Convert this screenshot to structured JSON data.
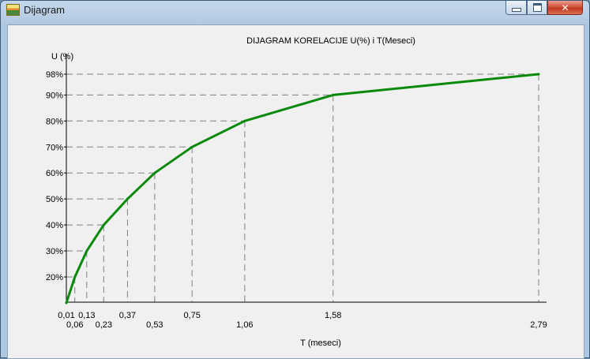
{
  "window": {
    "title": "Dijagram",
    "controls": {
      "minimize": "minimize",
      "maximize": "maximize",
      "close": "close"
    }
  },
  "chart_data": {
    "type": "line",
    "title": "DIJAGRAM KORELACIJE U(%) i T(Meseci)",
    "xlabel": "T (meseci)",
    "ylabel": "U (%)",
    "line_color": "#0a8a0a",
    "grid_color": "#808080",
    "grid": "dashed guide lines from each point to both axes",
    "series": [
      {
        "x": [
          "0,01",
          "0,06",
          "0,13",
          "0,23",
          "0,37",
          "0,53",
          "0,75",
          "1,06",
          "1,58",
          "2,79"
        ],
        "y": [
          10,
          20,
          30,
          40,
          50,
          60,
          70,
          80,
          90,
          98
        ]
      }
    ],
    "x_tick_labels": [
      "0,01",
      "0,06",
      "0,13",
      "0,23",
      "0,37",
      "0,53",
      "0,75",
      "1,06",
      "1,58",
      "2,79"
    ],
    "y_tick_labels": [
      "20%",
      "30%",
      "40%",
      "50%",
      "60%",
      "70%",
      "80%",
      "90%",
      "98%"
    ],
    "ylim": [
      10,
      98
    ]
  }
}
